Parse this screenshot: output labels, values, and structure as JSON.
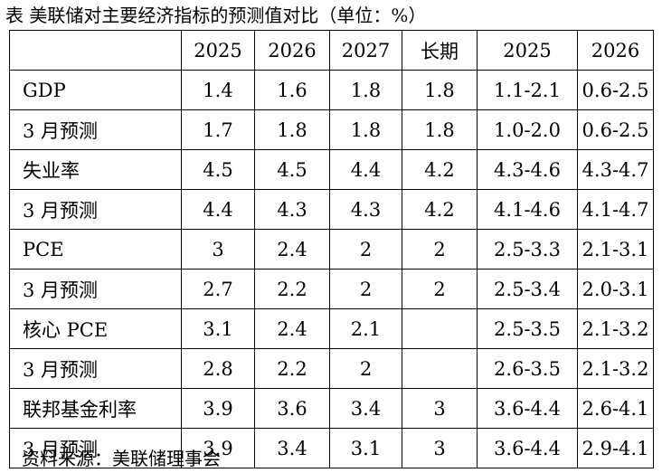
{
  "caption": "表 美联储对主要经济指标的预测值对比（单位：%）",
  "table": {
    "headers": [
      "",
      "2025",
      "2026",
      "2027",
      "长期",
      "2025",
      "2026"
    ],
    "rows": [
      [
        "GDP",
        "1.4",
        "1.6",
        "1.8",
        "1.8",
        "1.1-2.1",
        "0.6-2.5"
      ],
      [
        "3 月预测",
        "1.7",
        "1.8",
        "1.8",
        "1.8",
        "1.0-2.0",
        "0.6-2.5"
      ],
      [
        "失业率",
        "4.5",
        "4.5",
        "4.4",
        "4.2",
        "4.3-4.6",
        "4.3-4.7"
      ],
      [
        "3 月预测",
        "4.4",
        "4.3",
        "4.3",
        "4.2",
        "4.1-4.6",
        "4.1-4.7"
      ],
      [
        "PCE",
        "3",
        "2.4",
        "2",
        "2",
        "2.5-3.3",
        "2.1-3.1"
      ],
      [
        "3 月预测",
        "2.7",
        "2.2",
        "2",
        "2",
        "2.5-3.4",
        "2.0-3.1"
      ],
      [
        "核心 PCE",
        "3.1",
        "2.4",
        "2.1",
        "",
        "2.5-3.5",
        "2.1-3.2"
      ],
      [
        "3 月预测",
        "2.8",
        "2.2",
        "2",
        "",
        "2.6-3.5",
        "2.1-3.2"
      ],
      [
        "联邦基金利率",
        "3.9",
        "3.6",
        "3.4",
        "3",
        "3.6-4.4",
        "2.6-4.1"
      ],
      [
        "3 月预测",
        "3.9",
        "3.4",
        "3.1",
        "3",
        "3.6-4.4",
        "2.9-4.1"
      ]
    ]
  },
  "source": "资料来源：美联储理事会"
}
